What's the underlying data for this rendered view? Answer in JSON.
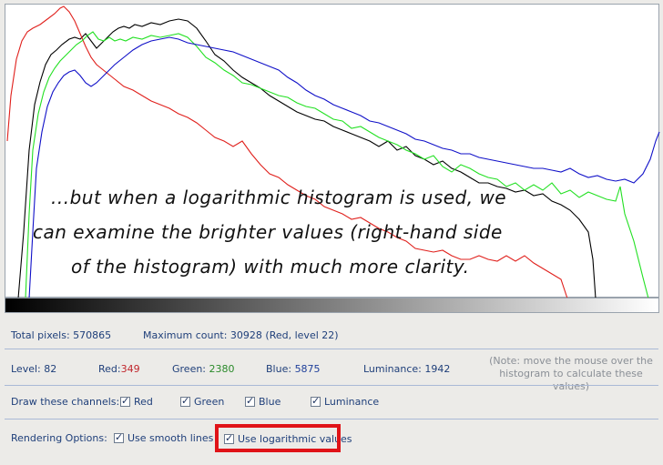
{
  "annotation": {
    "lines": [
      "...but when a logarithmic histogram is used, we",
      "can examine the brighter values (right-hand side",
      "of the histogram) with much more clarity."
    ]
  },
  "stats": {
    "total_pixels_label": "Total pixels: 570865",
    "max_count_label": "Maximum count: 30928 (Red, level 22)"
  },
  "readout": {
    "level_label": "Level: 82",
    "red_label": "Red:",
    "red_value": "349",
    "green_label": "Green:",
    "green_value": "2380",
    "blue_label": "Blue:",
    "blue_value": "5875",
    "luminance_label": "Luminance: 1942",
    "note_line1": "(Note: move the mouse over the",
    "note_line2": "histogram to calculate these values)"
  },
  "channels": {
    "label": "Draw these channels:",
    "items": [
      {
        "label": "Red",
        "checked": true
      },
      {
        "label": "Green",
        "checked": true
      },
      {
        "label": "Blue",
        "checked": true
      },
      {
        "label": "Luminance",
        "checked": true
      }
    ]
  },
  "rendering": {
    "label": "Rendering Options:",
    "smooth": {
      "label": "Use smooth lines",
      "checked": true
    },
    "log": {
      "label": "Use logarithmic values",
      "checked": true
    }
  },
  "colors": {
    "red": "#e0201c",
    "green": "#22e022",
    "blue": "#1010c8",
    "luminance": "#000000",
    "highlight": "#e01318"
  }
}
